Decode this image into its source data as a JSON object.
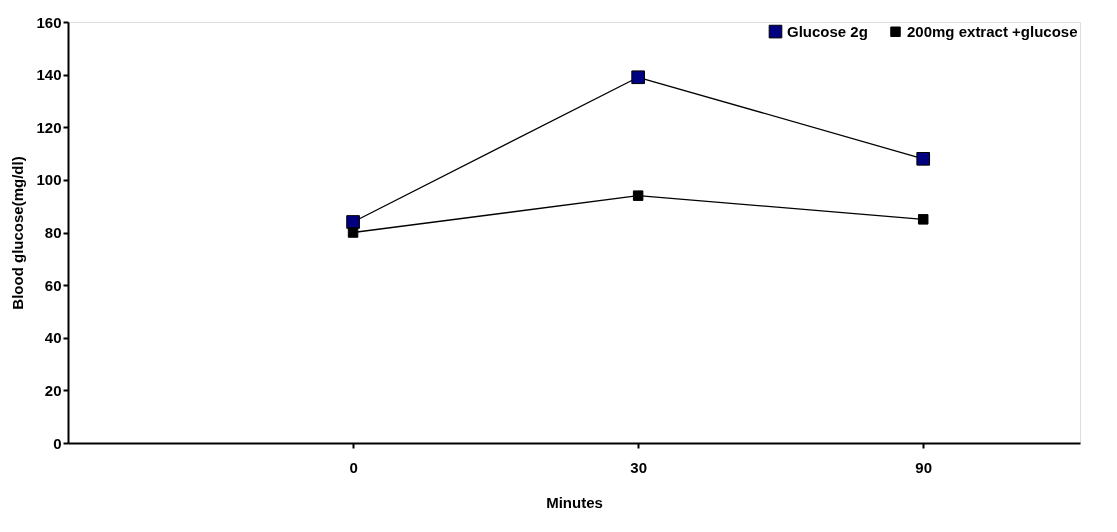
{
  "chart_data": {
    "type": "line",
    "xlabel": "Minutes",
    "ylabel": "Blood glucose(mg/dl)",
    "categories": [
      "0",
      "30",
      "90"
    ],
    "series": [
      {
        "name": "Glucose 2g",
        "color": "#000080",
        "values": [
          84,
          139,
          108
        ]
      },
      {
        "name": "200mg extract +glucose",
        "color": "#000000",
        "values": [
          80,
          94,
          85
        ]
      }
    ],
    "ylim": [
      0,
      160
    ],
    "yticks": [
      0,
      20,
      40,
      60,
      80,
      100,
      120,
      140,
      160
    ],
    "marker": "square",
    "line_style": "solid",
    "legend": "top right",
    "grid": false
  }
}
